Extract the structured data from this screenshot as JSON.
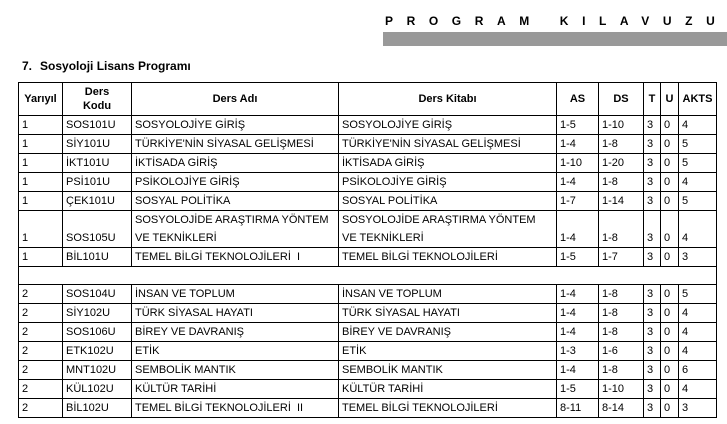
{
  "header": {
    "title": "PROGRAM KILAVUZU"
  },
  "section": {
    "number": "7.",
    "title": "Sosyoloji Lisans Programı"
  },
  "table": {
    "columns": [
      "Yarıyıl",
      "Ders Kodu",
      "Ders Adı",
      "Ders Kitabı",
      "AS",
      "DS",
      "T",
      "U",
      "AKTS"
    ],
    "groups": [
      {
        "rows": [
          [
            1,
            "SOS101U",
            "SOSYOLOJİYE GİRİŞ",
            "SOSYOLOJİYE GİRİŞ",
            "1-5",
            "1-10",
            3,
            0,
            4
          ],
          [
            1,
            "SİY101U",
            "TÜRKİYE'NİN SİYASAL GELİŞMESİ",
            "TÜRKİYE'NİN SİYASAL GELİŞMESİ",
            "1-4",
            "1-8",
            3,
            0,
            5
          ],
          [
            1,
            "İKT101U",
            "İKTİSADA GİRİŞ",
            "İKTİSADA GİRİŞ",
            "1-10",
            "1-20",
            3,
            0,
            5
          ],
          [
            1,
            "PSİ101U",
            "PSİKOLOJİYE GİRİŞ",
            "PSİKOLOJİYE GİRİŞ",
            "1-4",
            "1-8",
            3,
            0,
            4
          ],
          [
            1,
            "ÇEK101U",
            "SOSYAL POLİTİKA",
            "SOSYAL POLİTİKA",
            "1-7",
            "1-14",
            3,
            0,
            5
          ],
          [
            1,
            "SOS105U",
            "SOSYOLOJİDE ARAŞTIRMA YÖNTEM VE TEKNİKLERİ",
            "SOSYOLOJİDE ARAŞTIRMA YÖNTEM VE TEKNİKLERİ",
            "1-4",
            "1-8",
            3,
            0,
            4
          ],
          [
            1,
            "BİL101U",
            "TEMEL BİLGİ TEKNOLOJİLERİ  I",
            "TEMEL BİLGİ TEKNOLOJİLERİ",
            "1-5",
            "1-7",
            3,
            0,
            3
          ]
        ]
      },
      {
        "rows": [
          [
            2,
            "SOS104U",
            "İNSAN VE TOPLUM",
            "İNSAN VE TOPLUM",
            "1-4",
            "1-8",
            3,
            0,
            5
          ],
          [
            2,
            "SİY102U",
            "TÜRK SİYASAL HAYATI",
            "TÜRK SİYASAL HAYATI",
            "1-4",
            "1-8",
            3,
            0,
            4
          ],
          [
            2,
            "SOS106U",
            "BİREY VE DAVRANIŞ",
            "BİREY VE DAVRANIŞ",
            "1-4",
            "1-8",
            3,
            0,
            4
          ],
          [
            2,
            "ETK102U",
            "ETİK",
            "ETİK",
            "1-3",
            "1-6",
            3,
            0,
            4
          ],
          [
            2,
            "MNT102U",
            "SEMBOLİK MANTIK",
            "SEMBOLİK MANTIK",
            "1-4",
            "1-8",
            3,
            0,
            6
          ],
          [
            2,
            "KÜL102U",
            "KÜLTÜR TARİHİ",
            "KÜLTÜR TARİHİ",
            "1-5",
            "1-10",
            3,
            0,
            4
          ],
          [
            2,
            "BİL102U",
            "TEMEL BİLGİ TEKNOLOJİLERİ  II",
            "TEMEL BİLGİ TEKNOLOJİLERİ",
            "8-11",
            "8-14",
            3,
            0,
            3
          ]
        ]
      }
    ]
  }
}
